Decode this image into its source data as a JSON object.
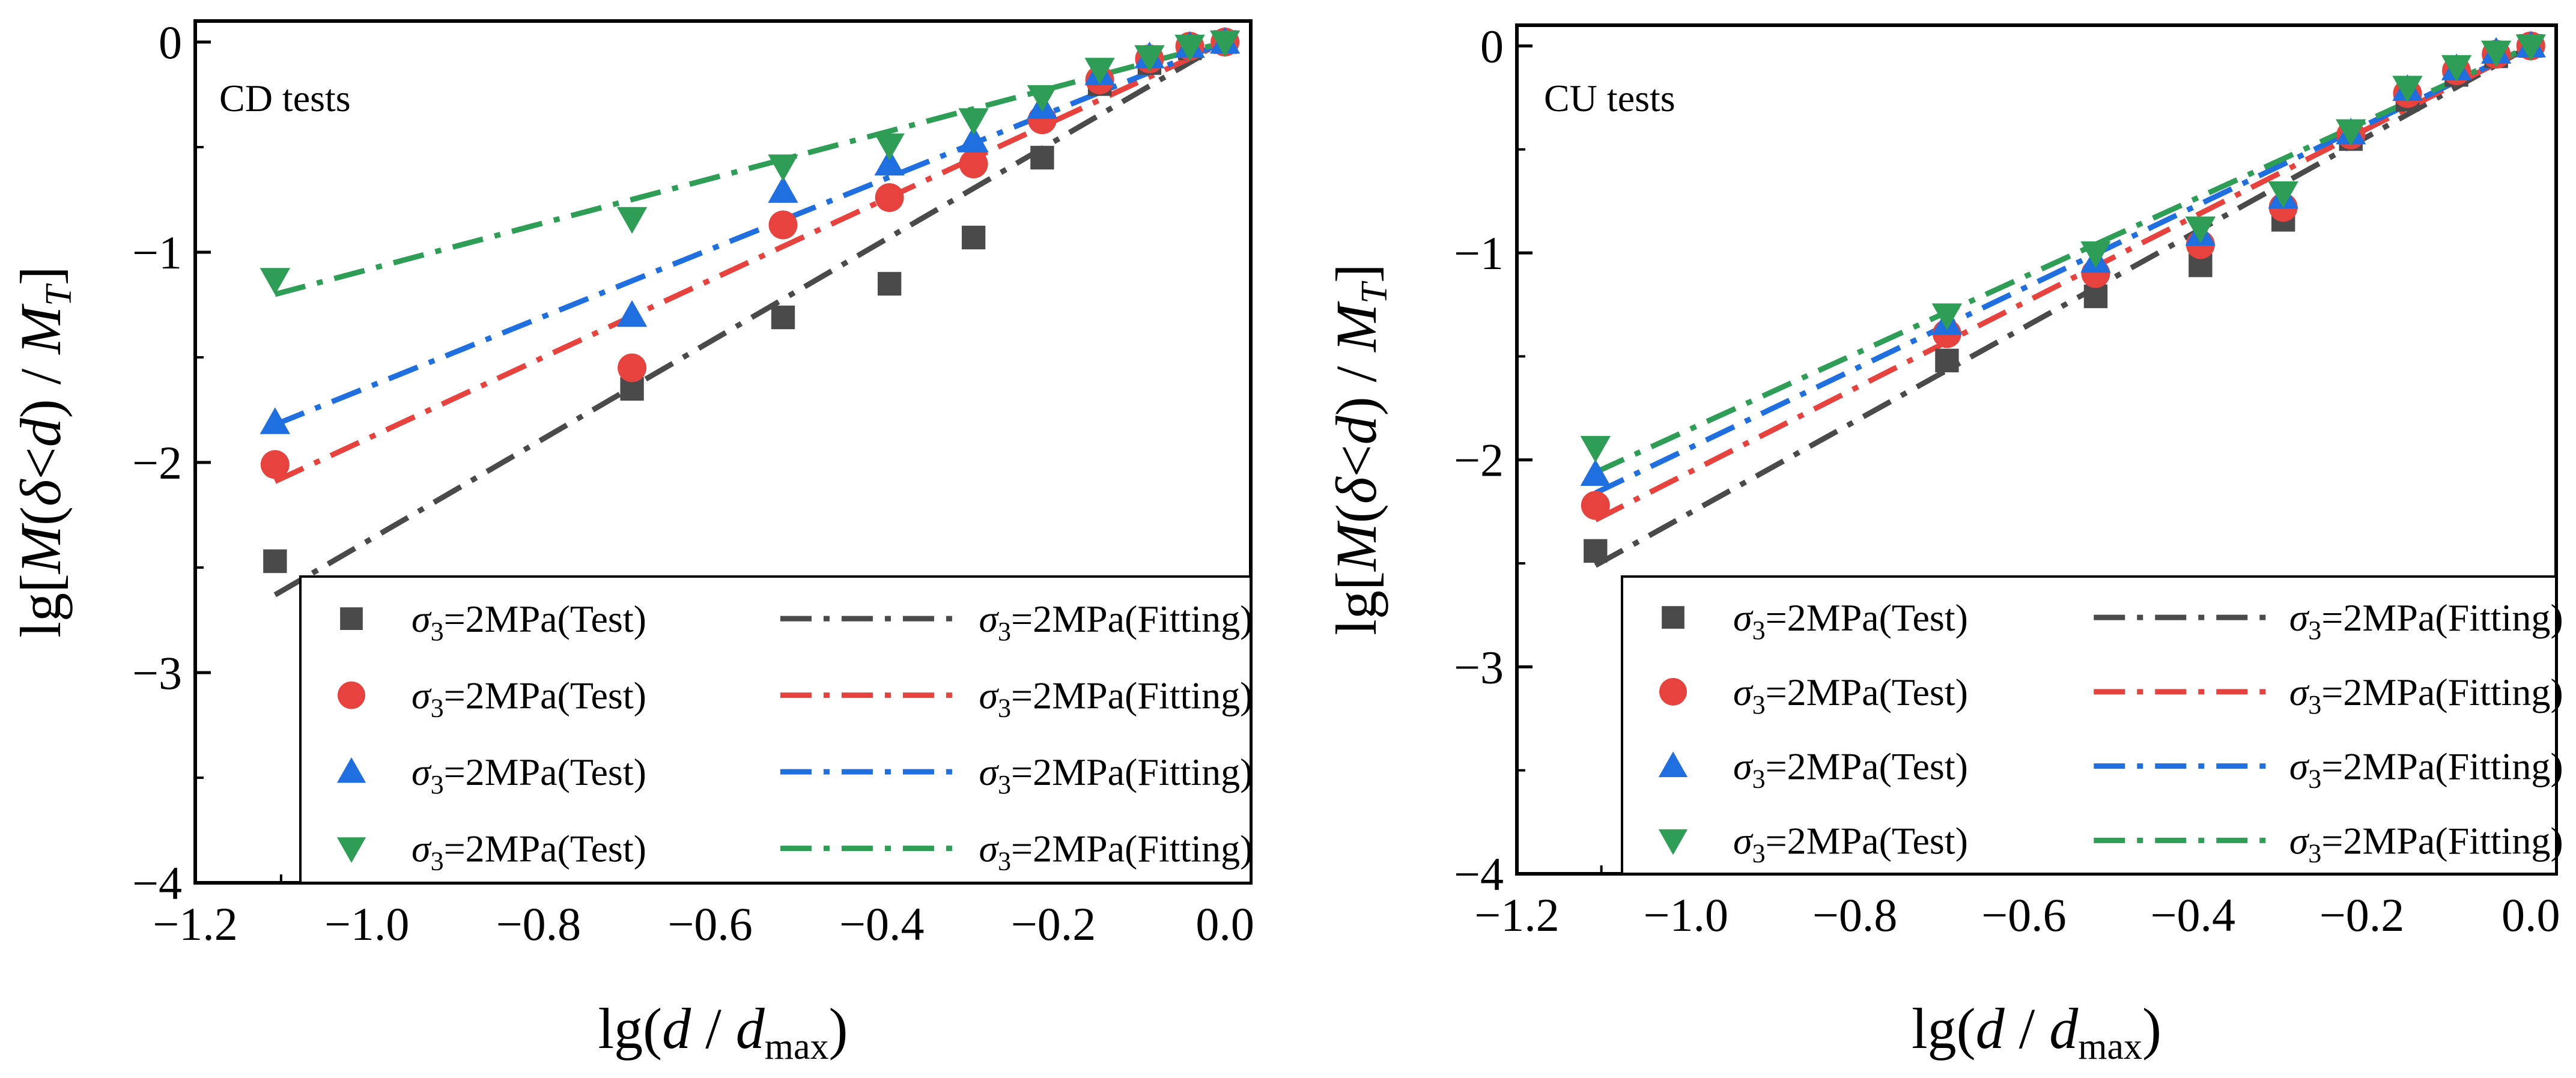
{
  "chart_data": [
    {
      "type": "scatter",
      "title": "CD tests",
      "xlabel": "lg(d / dmax)",
      "ylabel": "lg[M(δ<d) / MT]",
      "xlim": [
        -1.2,
        0.03
      ],
      "ylim": [
        -4,
        0.1
      ],
      "xticks": [
        -1.2,
        -1.0,
        -0.8,
        -0.6,
        -0.4,
        -0.2,
        0.0
      ],
      "yticks": [
        -4,
        -3,
        -2,
        -1,
        0
      ],
      "xtick_labels": [
        "−1.2",
        "−1.0",
        "−0.8",
        "−0.6",
        "−0.4",
        "−0.2",
        "0.0"
      ],
      "ytick_labels": [
        "−4",
        "−3",
        "−2",
        "−1",
        "0"
      ],
      "x": [
        -1.107,
        -0.691,
        -0.515,
        -0.391,
        -0.293,
        -0.213,
        -0.146,
        -0.088,
        -0.041,
        0.0
      ],
      "legend_position": "bottom-right",
      "series": [
        {
          "name": "σ3=2MPa(Test)",
          "fit_name": "σ3=2MPa(Fitting)",
          "color": "#4a4a4a",
          "marker": "square",
          "values": [
            -2.47,
            -1.65,
            -1.31,
            -1.15,
            -0.93,
            -0.55,
            -0.2,
            -0.1,
            -0.03,
            0.0
          ],
          "fit_y": [
            -2.63,
            0.0
          ]
        },
        {
          "name": "σ3=2MPa(Test)",
          "fit_name": "σ3=2MPa(Fitting)",
          "color": "#e8423f",
          "marker": "circle",
          "values": [
            -2.01,
            -1.55,
            -0.87,
            -0.74,
            -0.58,
            -0.37,
            -0.18,
            -0.08,
            -0.02,
            0.0
          ],
          "fit_y": [
            -2.09,
            0.0
          ]
        },
        {
          "name": "σ3=2MPa(Test)",
          "fit_name": "σ3=2MPa(Fitting)",
          "color": "#1f6fe0",
          "marker": "triangle-up",
          "values": [
            -1.81,
            -1.3,
            -0.71,
            -0.58,
            -0.47,
            -0.31,
            -0.15,
            -0.07,
            -0.02,
            0.0
          ],
          "fit_y": [
            -1.82,
            0.0
          ]
        },
        {
          "name": "σ3=2MPa(Test)",
          "fit_name": "σ3=2MPa(Fitting)",
          "color": "#2e9e57",
          "marker": "triangle-down",
          "values": [
            -1.13,
            -0.84,
            -0.59,
            -0.49,
            -0.37,
            -0.26,
            -0.13,
            -0.07,
            -0.02,
            0.0
          ],
          "fit_y": [
            -1.2,
            0.0
          ]
        }
      ]
    },
    {
      "type": "scatter",
      "title": "CU tests",
      "xlabel": "lg(d / dmax)",
      "ylabel": "lg[M(δ<d) / MT]",
      "xlim": [
        -1.2,
        0.03
      ],
      "ylim": [
        -4,
        0.1
      ],
      "xticks": [
        -1.2,
        -1.0,
        -0.8,
        -0.6,
        -0.4,
        -0.2,
        0.0
      ],
      "yticks": [
        -4,
        -3,
        -2,
        -1,
        0
      ],
      "xtick_labels": [
        "−1.2",
        "−1.0",
        "−0.8",
        "−0.6",
        "−0.4",
        "−0.2",
        "0.0"
      ],
      "ytick_labels": [
        "−4",
        "−3",
        "−2",
        "−1",
        "0"
      ],
      "x": [
        -1.107,
        -0.691,
        -0.515,
        -0.391,
        -0.293,
        -0.213,
        -0.146,
        -0.088,
        -0.041,
        0.0
      ],
      "legend_position": "bottom-right",
      "series": [
        {
          "name": "σ3=2MPa(Test)",
          "fit_name": "σ3=2MPa(Fitting)",
          "color": "#4a4a4a",
          "marker": "square",
          "values": [
            -2.44,
            -1.52,
            -1.21,
            -1.06,
            -0.84,
            -0.45,
            -0.26,
            -0.14,
            -0.05,
            0.0
          ],
          "fit_y": [
            -2.51,
            0.0
          ]
        },
        {
          "name": "σ3=2MPa(Test)",
          "fit_name": "σ3=2MPa(Fitting)",
          "color": "#e8423f",
          "marker": "circle",
          "values": [
            -2.22,
            -1.39,
            -1.1,
            -0.96,
            -0.78,
            -0.43,
            -0.23,
            -0.12,
            -0.04,
            0.0
          ],
          "fit_y": [
            -2.29,
            0.0
          ]
        },
        {
          "name": "σ3=2MPa(Test)",
          "fit_name": "σ3=2MPa(Fitting)",
          "color": "#1f6fe0",
          "marker": "triangle-up",
          "values": [
            -2.07,
            -1.34,
            -1.04,
            -0.91,
            -0.73,
            -0.42,
            -0.21,
            -0.11,
            -0.03,
            0.0
          ],
          "fit_y": [
            -2.16,
            0.0
          ]
        },
        {
          "name": "σ3=2MPa(Test)",
          "fit_name": "σ3=2MPa(Fitting)",
          "color": "#2e9e57",
          "marker": "triangle-down",
          "values": [
            -1.94,
            -1.3,
            -1.0,
            -0.88,
            -0.71,
            -0.41,
            -0.2,
            -0.1,
            -0.03,
            0.0
          ],
          "fit_y": [
            -2.06,
            0.0
          ]
        }
      ]
    }
  ]
}
